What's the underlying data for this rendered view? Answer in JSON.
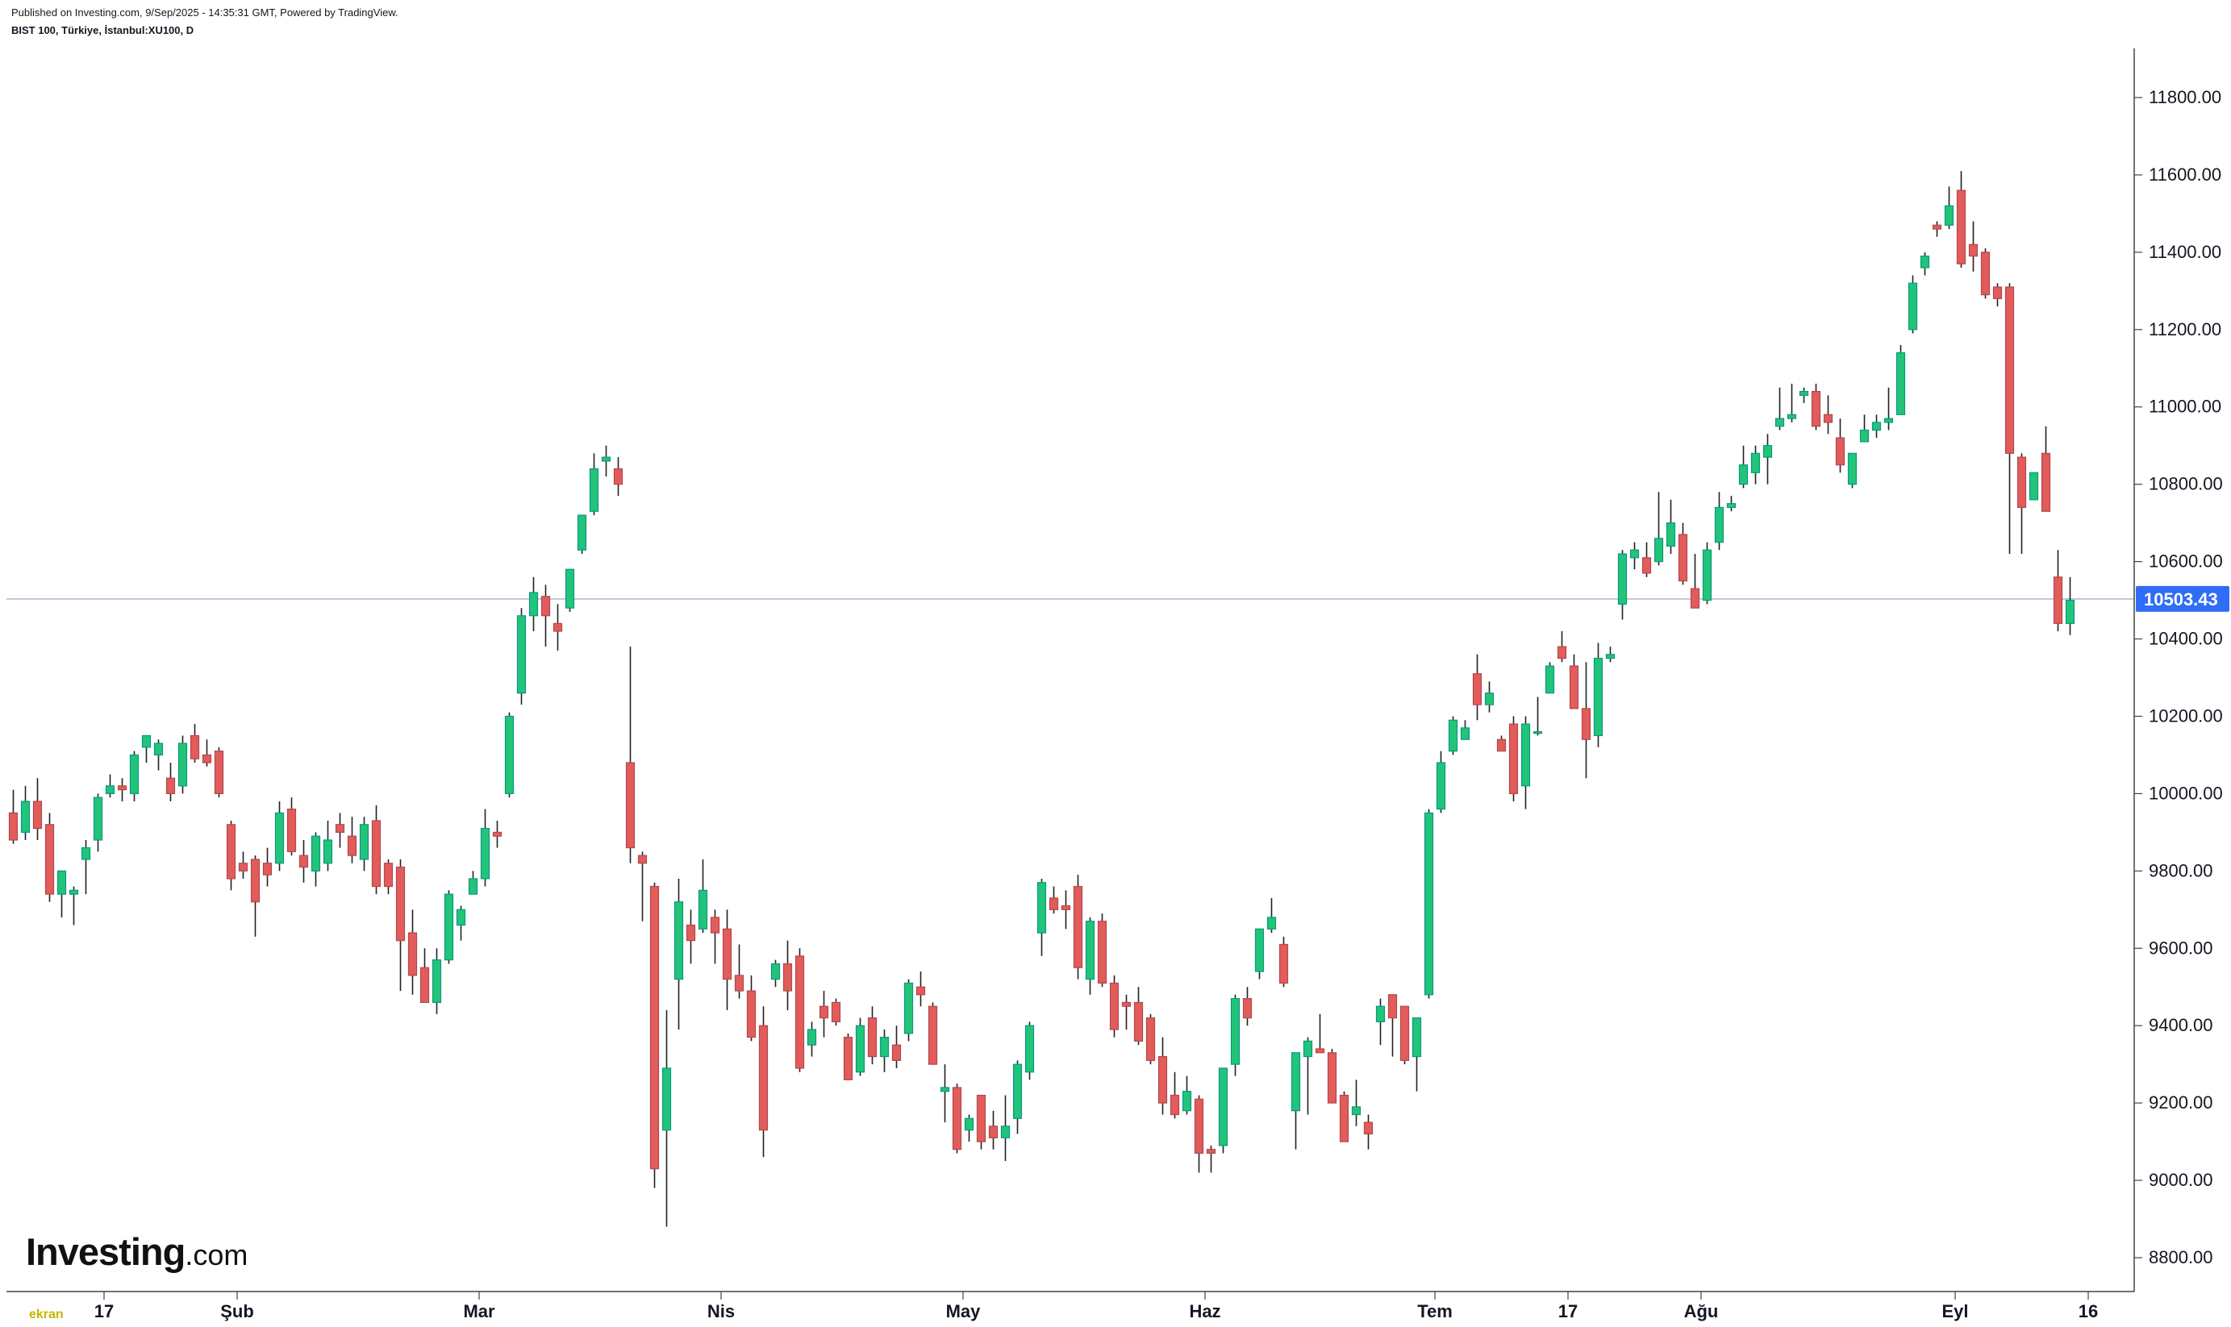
{
  "header": {
    "published_text": "Published on Investing.com, 9/Sep/2025 - 14:35:31 GMT, Powered by TradingView.",
    "symbol_text": "BIST 100, Türkiye, İstanbul:XU100, D"
  },
  "branding": {
    "logo_main": "Investing",
    "logo_suffix": ".com",
    "watermark": "ekran"
  },
  "colors": {
    "up": "#089981",
    "up_fill": "#22c47a",
    "down": "#b4474a",
    "down_fill": "#e25c5c",
    "wick": "#222222",
    "price_line": "#9fb3c8",
    "price_badge": "#2f6df6",
    "axis": "#444444"
  },
  "chart_data": {
    "type": "candlestick",
    "title": "BIST 100, Türkiye, İstanbul:XU100, D",
    "ylim": [
      8700,
      11950
    ],
    "y_ticks": [
      8800,
      9000,
      9200,
      9400,
      9600,
      9800,
      10000,
      10200,
      10400,
      10600,
      10800,
      11000,
      11200,
      11400,
      11600,
      11800
    ],
    "y_tick_labels": [
      "8800.00",
      "9000.00",
      "9200.00",
      "9400.00",
      "9600.00",
      "9800.00",
      "10000.00",
      "10200.00",
      "10400.00",
      "10600.00",
      "10800.00",
      "11000.00",
      "11200.00",
      "11400.00",
      "11600.00",
      "11800.00"
    ],
    "x_ticks": [
      {
        "label": "17",
        "index": 7.5
      },
      {
        "label": "Şub",
        "index": 18.5
      },
      {
        "label": "Mar",
        "index": 38.5
      },
      {
        "label": "Nis",
        "index": 58.5
      },
      {
        "label": "May",
        "index": 78.5
      },
      {
        "label": "Haz",
        "index": 98.5
      },
      {
        "label": "Tem",
        "index": 117.5
      },
      {
        "label": "17",
        "index": 128.5
      },
      {
        "label": "Ağu",
        "index": 139.5
      },
      {
        "label": "Eyl",
        "index": 160.5
      },
      {
        "label": "16",
        "index": 171.5
      }
    ],
    "last_price": 10503.43,
    "last_price_label": "10503.43",
    "candles": [
      [
        9950,
        10010,
        9870,
        9880
      ],
      [
        9900,
        10020,
        9880,
        9980
      ],
      [
        9980,
        10040,
        9880,
        9910
      ],
      [
        9920,
        9950,
        9720,
        9740
      ],
      [
        9740,
        9800,
        9680,
        9800
      ],
      [
        9740,
        9760,
        9660,
        9750
      ],
      [
        9830,
        9880,
        9740,
        9860
      ],
      [
        9880,
        10000,
        9850,
        9990
      ],
      [
        10000,
        10050,
        9990,
        10020
      ],
      [
        10020,
        10040,
        9980,
        10010
      ],
      [
        10000,
        10110,
        9980,
        10100
      ],
      [
        10120,
        10150,
        10080,
        10150
      ],
      [
        10100,
        10140,
        10060,
        10130
      ],
      [
        10040,
        10080,
        9980,
        10000
      ],
      [
        10020,
        10150,
        10000,
        10130
      ],
      [
        10150,
        10180,
        10080,
        10090
      ],
      [
        10100,
        10140,
        10070,
        10080
      ],
      [
        10110,
        10120,
        9990,
        10000
      ],
      [
        9920,
        9930,
        9750,
        9780
      ],
      [
        9820,
        9850,
        9780,
        9800
      ],
      [
        9830,
        9840,
        9630,
        9720
      ],
      [
        9820,
        9860,
        9760,
        9790
      ],
      [
        9820,
        9980,
        9800,
        9950
      ],
      [
        9960,
        9990,
        9840,
        9850
      ],
      [
        9840,
        9880,
        9770,
        9810
      ],
      [
        9800,
        9900,
        9760,
        9890
      ],
      [
        9820,
        9930,
        9800,
        9880
      ],
      [
        9920,
        9950,
        9860,
        9900
      ],
      [
        9890,
        9940,
        9820,
        9840
      ],
      [
        9830,
        9940,
        9800,
        9920
      ],
      [
        9930,
        9970,
        9740,
        9760
      ],
      [
        9820,
        9830,
        9740,
        9760
      ],
      [
        9810,
        9830,
        9490,
        9620
      ],
      [
        9640,
        9700,
        9480,
        9530
      ],
      [
        9550,
        9600,
        9460,
        9460
      ],
      [
        9460,
        9600,
        9430,
        9570
      ],
      [
        9570,
        9750,
        9560,
        9740
      ],
      [
        9660,
        9710,
        9620,
        9700
      ],
      [
        9740,
        9800,
        9740,
        9780
      ],
      [
        9780,
        9960,
        9760,
        9910
      ],
      [
        9900,
        9930,
        9860,
        9890
      ],
      [
        10000,
        10210,
        9990,
        10200
      ],
      [
        10260,
        10480,
        10230,
        10460
      ],
      [
        10460,
        10560,
        10420,
        10520
      ],
      [
        10510,
        10540,
        10380,
        10460
      ],
      [
        10440,
        10490,
        10370,
        10420
      ],
      [
        10480,
        10580,
        10470,
        10580
      ],
      [
        10630,
        10720,
        10620,
        10720
      ],
      [
        10730,
        10880,
        10720,
        10840
      ],
      [
        10860,
        10900,
        10820,
        10870
      ],
      [
        10840,
        10870,
        10770,
        10800
      ],
      [
        10080,
        10380,
        9820,
        9860
      ],
      [
        9840,
        9850,
        9670,
        9820
      ],
      [
        9760,
        9770,
        8980,
        9030
      ],
      [
        9130,
        9440,
        8880,
        9290
      ],
      [
        9520,
        9780,
        9390,
        9720
      ],
      [
        9660,
        9700,
        9560,
        9620
      ],
      [
        9650,
        9830,
        9640,
        9750
      ],
      [
        9680,
        9700,
        9560,
        9640
      ],
      [
        9650,
        9700,
        9440,
        9520
      ],
      [
        9530,
        9610,
        9470,
        9490
      ],
      [
        9490,
        9530,
        9360,
        9370
      ],
      [
        9400,
        9450,
        9060,
        9130
      ],
      [
        9520,
        9570,
        9500,
        9560
      ],
      [
        9560,
        9620,
        9440,
        9490
      ],
      [
        9580,
        9600,
        9280,
        9290
      ],
      [
        9350,
        9410,
        9320,
        9390
      ],
      [
        9450,
        9490,
        9370,
        9420
      ],
      [
        9460,
        9470,
        9400,
        9410
      ],
      [
        9370,
        9380,
        9270,
        9260
      ],
      [
        9280,
        9420,
        9270,
        9400
      ],
      [
        9420,
        9450,
        9300,
        9320
      ],
      [
        9320,
        9390,
        9280,
        9370
      ],
      [
        9350,
        9400,
        9290,
        9310
      ],
      [
        9380,
        9520,
        9360,
        9510
      ],
      [
        9500,
        9540,
        9450,
        9480
      ],
      [
        9450,
        9460,
        9300,
        9300
      ],
      [
        9230,
        9300,
        9150,
        9240
      ],
      [
        9240,
        9250,
        9070,
        9080
      ],
      [
        9130,
        9170,
        9100,
        9160
      ],
      [
        9220,
        9220,
        9080,
        9100
      ],
      [
        9140,
        9180,
        9080,
        9110
      ],
      [
        9110,
        9220,
        9050,
        9140
      ],
      [
        9160,
        9310,
        9120,
        9300
      ],
      [
        9280,
        9410,
        9260,
        9400
      ],
      [
        9640,
        9780,
        9580,
        9770
      ],
      [
        9730,
        9760,
        9690,
        9700
      ],
      [
        9710,
        9750,
        9650,
        9700
      ],
      [
        9760,
        9790,
        9520,
        9550
      ],
      [
        9520,
        9680,
        9480,
        9670
      ],
      [
        9670,
        9690,
        9500,
        9510
      ],
      [
        9510,
        9530,
        9370,
        9390
      ],
      [
        9460,
        9480,
        9390,
        9450
      ],
      [
        9460,
        9500,
        9350,
        9360
      ],
      [
        9420,
        9430,
        9300,
        9310
      ],
      [
        9320,
        9370,
        9170,
        9200
      ],
      [
        9220,
        9280,
        9160,
        9170
      ],
      [
        9180,
        9270,
        9170,
        9230
      ],
      [
        9210,
        9220,
        9020,
        9070
      ],
      [
        9080,
        9090,
        9020,
        9070
      ],
      [
        9090,
        9290,
        9070,
        9290
      ],
      [
        9300,
        9480,
        9270,
        9470
      ],
      [
        9470,
        9500,
        9400,
        9420
      ],
      [
        9540,
        9650,
        9520,
        9650
      ],
      [
        9650,
        9730,
        9640,
        9680
      ],
      [
        9610,
        9630,
        9500,
        9510
      ],
      [
        9180,
        9330,
        9080,
        9330
      ],
      [
        9320,
        9370,
        9170,
        9360
      ],
      [
        9340,
        9430,
        9330,
        9330
      ],
      [
        9330,
        9340,
        9210,
        9200
      ],
      [
        9220,
        9230,
        9100,
        9100
      ],
      [
        9170,
        9260,
        9140,
        9190
      ],
      [
        9150,
        9170,
        9080,
        9120
      ],
      [
        9410,
        9470,
        9350,
        9450
      ],
      [
        9480,
        9480,
        9320,
        9420
      ],
      [
        9450,
        9450,
        9300,
        9310
      ],
      [
        9320,
        9420,
        9230,
        9420
      ],
      [
        9480,
        9960,
        9470,
        9950
      ],
      [
        9960,
        10110,
        9950,
        10080
      ],
      [
        10110,
        10200,
        10100,
        10190
      ],
      [
        10140,
        10190,
        10150,
        10170
      ],
      [
        10310,
        10360,
        10190,
        10230
      ],
      [
        10230,
        10290,
        10210,
        10260
      ],
      [
        10140,
        10150,
        10110,
        10110
      ],
      [
        10180,
        10200,
        9980,
        10000
      ],
      [
        10020,
        10200,
        9960,
        10180
      ],
      [
        10160,
        10250,
        10150,
        10160
      ],
      [
        10260,
        10340,
        10270,
        10330
      ],
      [
        10380,
        10420,
        10340,
        10350
      ],
      [
        10330,
        10360,
        10220,
        10220
      ],
      [
        10220,
        10340,
        10040,
        10140
      ],
      [
        10150,
        10390,
        10120,
        10350
      ],
      [
        10350,
        10380,
        10340,
        10360
      ],
      [
        10490,
        10630,
        10450,
        10620
      ],
      [
        10610,
        10650,
        10580,
        10630
      ],
      [
        10610,
        10650,
        10560,
        10570
      ],
      [
        10600,
        10780,
        10590,
        10660
      ],
      [
        10640,
        10760,
        10620,
        10700
      ],
      [
        10670,
        10700,
        10540,
        10550
      ],
      [
        10530,
        10620,
        10480,
        10480
      ],
      [
        10500,
        10650,
        10490,
        10630
      ],
      [
        10650,
        10780,
        10630,
        10740
      ],
      [
        10740,
        10770,
        10730,
        10750
      ],
      [
        10800,
        10900,
        10790,
        10850
      ],
      [
        10830,
        10900,
        10800,
        10880
      ],
      [
        10870,
        10930,
        10800,
        10900
      ],
      [
        10950,
        11050,
        10940,
        10970
      ],
      [
        10970,
        11060,
        10960,
        10980
      ],
      [
        11030,
        11050,
        11010,
        11040
      ],
      [
        11040,
        11060,
        10940,
        10950
      ],
      [
        10980,
        11030,
        10930,
        10960
      ],
      [
        10920,
        10970,
        10830,
        10850
      ],
      [
        10800,
        10880,
        10790,
        10880
      ],
      [
        10910,
        10980,
        10910,
        10940
      ],
      [
        10940,
        10980,
        10920,
        10960
      ],
      [
        10960,
        11050,
        10940,
        10970
      ],
      [
        10980,
        11160,
        10980,
        11140
      ],
      [
        11200,
        11340,
        11190,
        11320
      ],
      [
        11360,
        11400,
        11340,
        11390
      ],
      [
        11470,
        11480,
        11440,
        11460
      ],
      [
        11470,
        11570,
        11460,
        11520
      ],
      [
        11560,
        11610,
        11360,
        11370
      ],
      [
        11420,
        11480,
        11350,
        11390
      ],
      [
        11400,
        11410,
        11280,
        11290
      ],
      [
        11310,
        11320,
        11260,
        11280
      ],
      [
        11310,
        11320,
        10620,
        10880
      ],
      [
        10870,
        10880,
        10620,
        10740
      ],
      [
        10760,
        10830,
        10760,
        10830
      ],
      [
        10880,
        10950,
        10730,
        10730
      ],
      [
        10560,
        10630,
        10420,
        10440
      ],
      [
        10440,
        10560,
        10410,
        10500
      ]
    ]
  }
}
